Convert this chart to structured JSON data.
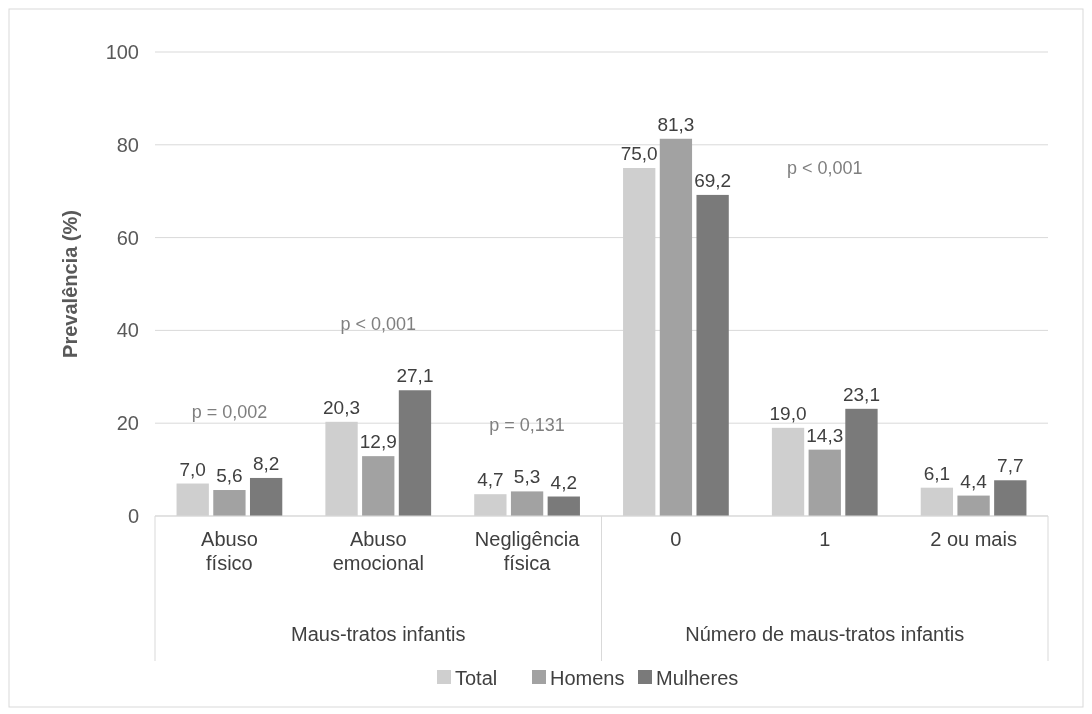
{
  "chart_data": {
    "type": "bar",
    "ylabel": "Prevalência (%)",
    "categories": [
      "Abuso físico",
      "Abuso emocional",
      "Negligência física",
      "0",
      "1",
      "2 ou mais"
    ],
    "series": [
      {
        "name": "Total",
        "color": "#cfcfcf",
        "values": [
          7.0,
          20.3,
          4.7,
          75.0,
          19.0,
          6.1
        ],
        "value_labels": [
          "7,0",
          "20,3",
          "4,7",
          "75,0",
          "19,0",
          "6,1"
        ]
      },
      {
        "name": "Homens",
        "color": "#a2a2a2",
        "values": [
          5.6,
          12.9,
          5.3,
          81.3,
          14.3,
          4.4
        ],
        "value_labels": [
          "5,6",
          "12,9",
          "5,3",
          "81,3",
          "14,3",
          "4,4"
        ]
      },
      {
        "name": "Mulheres",
        "color": "#7a7a7a",
        "values": [
          8.2,
          27.1,
          4.2,
          69.2,
          23.1,
          7.7
        ],
        "value_labels": [
          "8,2",
          "27,1",
          "4,2",
          "69,2",
          "23,1",
          "7,7"
        ]
      }
    ],
    "ylim": [
      0,
      100
    ],
    "yticks": [
      0,
      20,
      40,
      60,
      80,
      100
    ],
    "grid": "y",
    "legend": "bottom",
    "annotations": [
      "p = 0,002",
      "p < 0,001",
      "p = 0,131",
      "p < 0,001",
      "Maus-tratos infantis",
      "Número de maus-tratos infantis"
    ]
  }
}
